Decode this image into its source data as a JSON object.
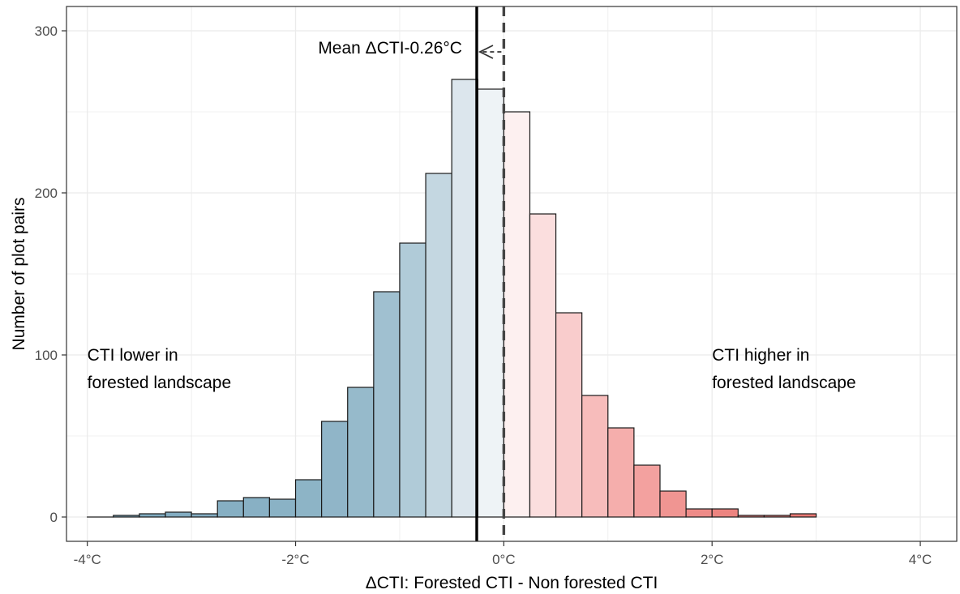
{
  "chart_data": {
    "type": "bar",
    "xlabel": "ΔCTI: Forested CTI  -  Non forested CTI",
    "ylabel": "Number of plot pairs",
    "xlim": [
      -4.2,
      4.35
    ],
    "ylim": [
      -15,
      315
    ],
    "grid": true,
    "x_ticks": [
      {
        "value": -4,
        "label": "-4°C"
      },
      {
        "value": -2,
        "label": "-2°C"
      },
      {
        "value": 0,
        "label": "0°C"
      },
      {
        "value": 2,
        "label": "2°C"
      },
      {
        "value": 4,
        "label": "4°C"
      }
    ],
    "y_ticks": [
      {
        "value": 0,
        "label": "0"
      },
      {
        "value": 100,
        "label": "100"
      },
      {
        "value": 200,
        "label": "200"
      },
      {
        "value": 300,
        "label": "300"
      }
    ],
    "bin_width": 0.25,
    "bins": [
      {
        "x0": -4.0,
        "x1": -3.75,
        "count": 0,
        "color": "#7faabf"
      },
      {
        "x0": -3.75,
        "x1": -3.5,
        "count": 1,
        "color": "#7faabf"
      },
      {
        "x0": -3.5,
        "x1": -3.25,
        "count": 2,
        "color": "#80abc0"
      },
      {
        "x0": -3.25,
        "x1": -3.0,
        "count": 3,
        "color": "#82acc1"
      },
      {
        "x0": -3.0,
        "x1": -2.75,
        "count": 2,
        "color": "#84adc2"
      },
      {
        "x0": -2.75,
        "x1": -2.5,
        "count": 10,
        "color": "#86afc3"
      },
      {
        "x0": -2.5,
        "x1": -2.25,
        "count": 12,
        "color": "#88b0c4"
      },
      {
        "x0": -2.25,
        "x1": -2.0,
        "count": 11,
        "color": "#8ab2c5"
      },
      {
        "x0": -2.0,
        "x1": -1.75,
        "count": 23,
        "color": "#8db4c6"
      },
      {
        "x0": -1.75,
        "x1": -1.5,
        "count": 59,
        "color": "#90b5c8"
      },
      {
        "x0": -1.5,
        "x1": -1.25,
        "count": 80,
        "color": "#96bacb"
      },
      {
        "x0": -1.25,
        "x1": -1.0,
        "count": 139,
        "color": "#a0c0d0"
      },
      {
        "x0": -1.0,
        "x1": -0.75,
        "count": 169,
        "color": "#b0cbd8"
      },
      {
        "x0": -0.75,
        "x1": -0.5,
        "count": 212,
        "color": "#c4d7e1"
      },
      {
        "x0": -0.5,
        "x1": -0.25,
        "count": 270,
        "color": "#dce6ed"
      },
      {
        "x0": -0.25,
        "x1": 0.0,
        "count": 264,
        "color": "#eef3f6"
      },
      {
        "x0": 0.0,
        "x1": 0.25,
        "count": 250,
        "color": "#fdf0f0"
      },
      {
        "x0": 0.25,
        "x1": 0.5,
        "count": 187,
        "color": "#fbdede"
      },
      {
        "x0": 0.5,
        "x1": 0.75,
        "count": 126,
        "color": "#f9cccc"
      },
      {
        "x0": 0.75,
        "x1": 1.0,
        "count": 75,
        "color": "#f7bcbb"
      },
      {
        "x0": 1.0,
        "x1": 1.25,
        "count": 55,
        "color": "#f5aeac"
      },
      {
        "x0": 1.25,
        "x1": 1.5,
        "count": 32,
        "color": "#f3a19f"
      },
      {
        "x0": 1.5,
        "x1": 1.75,
        "count": 16,
        "color": "#f09592"
      },
      {
        "x0": 1.75,
        "x1": 2.0,
        "count": 5,
        "color": "#ee8b88"
      },
      {
        "x0": 2.0,
        "x1": 2.25,
        "count": 5,
        "color": "#ec8480"
      },
      {
        "x0": 2.25,
        "x1": 2.5,
        "count": 1,
        "color": "#eb807c"
      },
      {
        "x0": 2.5,
        "x1": 2.75,
        "count": 1,
        "color": "#ea7c78"
      },
      {
        "x0": 2.75,
        "x1": 3.0,
        "count": 2,
        "color": "#e97874"
      }
    ],
    "mean_line": {
      "value": -0.26,
      "style": "solid"
    },
    "zero_line": {
      "value": 0,
      "style": "dashed"
    },
    "annotations": {
      "mean": "Mean ΔCTI-0.26°C",
      "left_line1": "CTI lower in",
      "left_line2": "forested landscape",
      "right_line1": "CTI higher in",
      "right_line2": "forested landscape"
    },
    "colors": {
      "grid": "#ebebeb",
      "axis": "#333333",
      "tick_text": "#4d4d4d",
      "mean_line": "#000000",
      "zero_line": "#444444",
      "bar_stroke": "#1a1a1a"
    }
  }
}
